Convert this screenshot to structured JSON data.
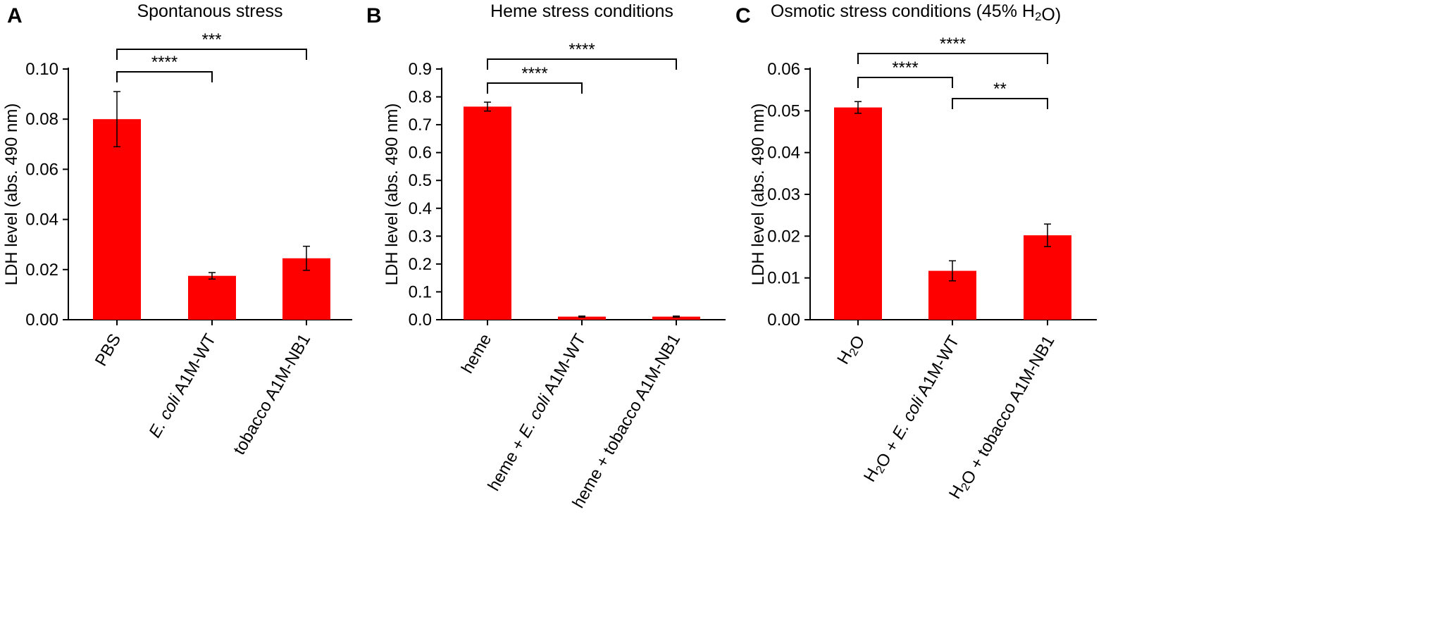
{
  "chart_data": [
    {
      "panel_letter": "A",
      "type": "bar",
      "title": "Spontanous stress",
      "ylabel": "LDH level (abs. 490 nm)",
      "ylim": [
        0,
        0.1
      ],
      "yticks": [
        "0.00",
        "0.02",
        "0.04",
        "0.06",
        "0.08",
        "0.10"
      ],
      "ytick_values": [
        0,
        0.02,
        0.04,
        0.06,
        0.08,
        0.1
      ],
      "categories": [
        "PBS",
        "E. coli A1M-WT",
        "tobacco A1M-NB1"
      ],
      "category_parts": [
        [
          {
            "t": "PBS"
          }
        ],
        [
          {
            "t": "E. coli",
            "i": true
          },
          {
            "t": " A1M-WT"
          }
        ],
        [
          {
            "t": "tobacco A1M-NB1"
          }
        ]
      ],
      "values": [
        0.08,
        0.0175,
        0.0245
      ],
      "errors": [
        0.011,
        0.0013,
        0.0048
      ],
      "bar_color": "#ff0000",
      "significance": [
        {
          "from": 0,
          "to": 1,
          "label": "****"
        },
        {
          "from": 0,
          "to": 2,
          "label": "***"
        }
      ]
    },
    {
      "panel_letter": "B",
      "type": "bar",
      "title": "Heme stress conditions",
      "ylabel": "LDH level (abs. 490 nm)",
      "ylim": [
        0,
        0.9
      ],
      "yticks": [
        "0.0",
        "0.1",
        "0.2",
        "0.3",
        "0.4",
        "0.5",
        "0.6",
        "0.7",
        "0.8",
        "0.9"
      ],
      "ytick_values": [
        0,
        0.1,
        0.2,
        0.3,
        0.4,
        0.5,
        0.6,
        0.7,
        0.8,
        0.9
      ],
      "categories": [
        "heme",
        "heme + E. coli A1M-WT",
        "heme + tobacco A1M-NB1"
      ],
      "category_parts": [
        [
          {
            "t": "heme"
          }
        ],
        [
          {
            "t": "heme + "
          },
          {
            "t": "E. coli",
            "i": true
          },
          {
            "t": " A1M-WT"
          }
        ],
        [
          {
            "t": "heme + tobacco A1M-NB1"
          }
        ]
      ],
      "values": [
        0.765,
        0.011,
        0.011
      ],
      "errors": [
        0.016,
        0.002,
        0.002
      ],
      "bar_color": "#ff0000",
      "significance": [
        {
          "from": 0,
          "to": 1,
          "label": "****"
        },
        {
          "from": 0,
          "to": 2,
          "label": "****"
        }
      ]
    },
    {
      "panel_letter": "C",
      "type": "bar",
      "title": "Osmotic stress conditions (45% H₂O)",
      "title_parts": [
        {
          "t": "Osmotic stress conditions (45% H"
        },
        {
          "t": "2",
          "sub": true
        },
        {
          "t": "O)"
        }
      ],
      "ylabel": "LDH level (abs. 490 nm)",
      "ylim": [
        0,
        0.06
      ],
      "yticks": [
        "0.00",
        "0.01",
        "0.02",
        "0.03",
        "0.04",
        "0.05",
        "0.06"
      ],
      "ytick_values": [
        0,
        0.01,
        0.02,
        0.03,
        0.04,
        0.05,
        0.06
      ],
      "categories": [
        "H₂O",
        "H₂O + E. coli A1M-WT",
        "H₂O + tobacco A1M-NB1"
      ],
      "category_parts": [
        [
          {
            "t": "H"
          },
          {
            "t": "2",
            "sub": true
          },
          {
            "t": "O"
          }
        ],
        [
          {
            "t": "H"
          },
          {
            "t": "2",
            "sub": true
          },
          {
            "t": "O + "
          },
          {
            "t": "E. coli",
            "i": true
          },
          {
            "t": " A1M-WT"
          }
        ],
        [
          {
            "t": "H"
          },
          {
            "t": "2",
            "sub": true
          },
          {
            "t": "O + tobacco A1M-NB1"
          }
        ]
      ],
      "values": [
        0.0508,
        0.0117,
        0.0202
      ],
      "errors": [
        0.0014,
        0.0024,
        0.0027
      ],
      "bar_color": "#ff0000",
      "significance": [
        {
          "from": 0,
          "to": 1,
          "label": "****"
        },
        {
          "from": 0,
          "to": 2,
          "label": "****"
        },
        {
          "from": 1,
          "to": 2,
          "label": "**"
        }
      ]
    }
  ]
}
